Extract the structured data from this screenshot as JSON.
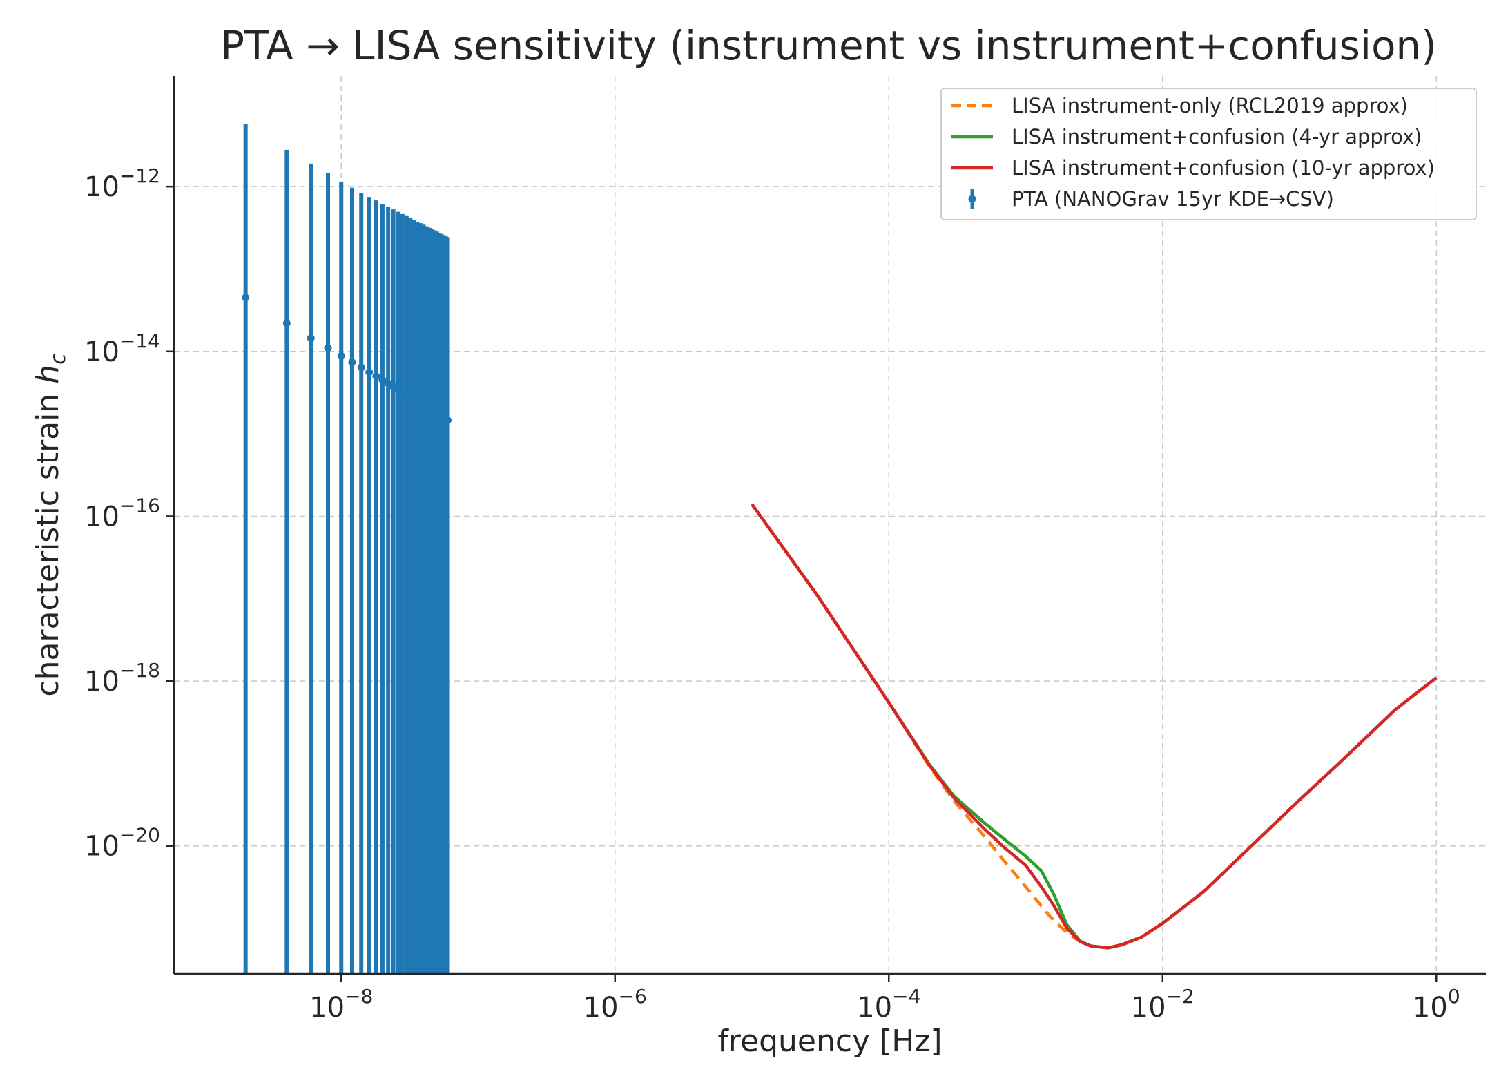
{
  "chart_data": {
    "type": "line",
    "title": "PTA → LISA sensitivity (instrument vs instrument+confusion)",
    "xlabel": "frequency [Hz]",
    "ylabel_text": "characteristic strain",
    "ylabel_symbol": "h",
    "ylabel_subscript": "c",
    "x_scale": "log",
    "y_scale": "log",
    "xlim": [
      6e-10,
      2.3
    ],
    "ylim": [
      2.8e-22,
      2.2e-11
    ],
    "x_ticks": [
      {
        "base": "10",
        "exp": "−8",
        "value": 1e-08
      },
      {
        "base": "10",
        "exp": "−6",
        "value": 1e-06
      },
      {
        "base": "10",
        "exp": "−4",
        "value": 0.0001
      },
      {
        "base": "10",
        "exp": "−2",
        "value": 0.01
      },
      {
        "base": "10",
        "exp": "0",
        "value": 1
      }
    ],
    "y_ticks": [
      {
        "base": "10",
        "exp": "−12",
        "value": 1e-12
      },
      {
        "base": "10",
        "exp": "−14",
        "value": 1e-14
      },
      {
        "base": "10",
        "exp": "−16",
        "value": 1e-16
      },
      {
        "base": "10",
        "exp": "−18",
        "value": 1e-18
      },
      {
        "base": "10",
        "exp": "−20",
        "value": 1e-20
      }
    ],
    "grid": true,
    "legend_position": "top-right",
    "colors": {
      "instrument": "#ff7f0e",
      "confusion_4yr": "#2ca02c",
      "confusion_10yr": "#d62728",
      "pta": "#1f77b4"
    },
    "legend": [
      {
        "label": "LISA instrument-only (RCL2019 approx)",
        "style": "dashed",
        "color": "#ff7f0e"
      },
      {
        "label": "LISA instrument+confusion (4-yr approx)",
        "style": "solid",
        "color": "#2ca02c"
      },
      {
        "label": "LISA instrument+confusion (10-yr approx)",
        "style": "solid",
        "color": "#d62728"
      },
      {
        "label": "PTA (NANOGrav 15yr KDE→CSV)",
        "style": "errorbar",
        "color": "#1f77b4"
      }
    ],
    "series": [
      {
        "name": "LISA instrument-only (RCL2019 approx)",
        "color": "#ff7f0e",
        "style": "dashed",
        "x": [
          1e-05,
          3e-05,
          0.0001,
          0.0002,
          0.0003,
          0.0005,
          0.0007,
          0.001,
          0.0015,
          0.002,
          0.0025,
          0.003,
          0.004,
          0.005,
          0.007,
          0.01,
          0.02,
          0.05,
          0.1,
          0.2,
          0.5,
          1.0
        ],
        "y": [
          1.4e-16,
          1.1e-17,
          5.5e-19,
          9e-20,
          3.5e-20,
          1.3e-20,
          6.5e-21,
          3.2e-21,
          1.4e-21,
          8.8e-22,
          6.9e-22,
          6.1e-22,
          5.8e-22,
          6.3e-22,
          7.8e-22,
          1.15e-21,
          2.8e-21,
          1.2e-20,
          3.6e-20,
          1.05e-19,
          4.5e-19,
          1.1e-18
        ]
      },
      {
        "name": "LISA instrument+confusion (4-yr approx)",
        "color": "#2ca02c",
        "style": "solid",
        "x": [
          1e-05,
          3e-05,
          0.0001,
          0.0002,
          0.0003,
          0.0005,
          0.0007,
          0.001,
          0.0013,
          0.0016,
          0.002,
          0.0025,
          0.003,
          0.004,
          0.005,
          0.007,
          0.01,
          0.02,
          0.05,
          0.1,
          0.2,
          0.5,
          1.0
        ],
        "y": [
          1.4e-16,
          1.1e-17,
          5.5e-19,
          9.5e-20,
          4e-20,
          1.9e-20,
          1.2e-20,
          7.5e-21,
          5e-21,
          2.6e-21,
          1.1e-21,
          7e-22,
          6.1e-22,
          5.8e-22,
          6.3e-22,
          7.8e-22,
          1.15e-21,
          2.8e-21,
          1.2e-20,
          3.6e-20,
          1.05e-19,
          4.5e-19,
          1.1e-18
        ]
      },
      {
        "name": "LISA instrument+confusion (10-yr approx)",
        "color": "#d62728",
        "style": "solid",
        "x": [
          1e-05,
          3e-05,
          0.0001,
          0.0002,
          0.0003,
          0.0005,
          0.0007,
          0.001,
          0.0013,
          0.0016,
          0.002,
          0.0025,
          0.003,
          0.004,
          0.005,
          0.007,
          0.01,
          0.02,
          0.05,
          0.1,
          0.2,
          0.5,
          1.0
        ],
        "y": [
          1.4e-16,
          1.1e-17,
          5.5e-19,
          9.3e-20,
          3.8e-20,
          1.6e-20,
          9.5e-21,
          5.8e-21,
          3.2e-21,
          1.9e-21,
          1e-21,
          6.9e-22,
          6.1e-22,
          5.8e-22,
          6.3e-22,
          7.8e-22,
          1.15e-21,
          2.8e-21,
          1.2e-20,
          3.6e-20,
          1.05e-19,
          4.5e-19,
          1.1e-18
        ]
      },
      {
        "name": "PTA (NANOGrav 15yr KDE→CSV)",
        "color": "#1f77b4",
        "style": "errorbar",
        "x": [
          2e-09,
          4e-09,
          6e-09,
          8e-09,
          1e-08,
          1.2e-08,
          1.4e-08,
          1.6e-08,
          1.8e-08,
          2e-08,
          2.2e-08,
          2.4e-08,
          2.6e-08,
          2.8e-08,
          3e-08,
          3.2e-08,
          3.4e-08,
          3.6e-08,
          3.8e-08,
          4e-08,
          4.2e-08,
          4.4e-08,
          4.6e-08,
          4.8e-08,
          5e-08,
          5.2e-08,
          5.4e-08,
          5.6e-08,
          5.8e-08,
          6e-08
        ],
        "y": [
          4.5e-14,
          2.2e-14,
          1.45e-14,
          1.1e-14,
          8.8e-15,
          7.4e-15,
          6.4e-15,
          5.6e-15,
          5e-15,
          4.5e-15,
          4.1e-15,
          3.75e-15,
          3.45e-15,
          3.2e-15,
          3e-15,
          2.8e-15,
          2.63e-15,
          2.48e-15,
          2.35e-15,
          2.23e-15,
          2.12e-15,
          2.02e-15,
          1.93e-15,
          1.85e-15,
          1.77e-15,
          1.7e-15,
          1.64e-15,
          1.58e-15,
          1.52e-15,
          1.46e-15
        ],
        "y_upper": [
          5.8e-12,
          2.8e-12,
          1.9e-12,
          1.45e-12,
          1.15e-12,
          9.7e-13,
          8.4e-13,
          7.5e-13,
          6.8e-13,
          6.2e-13,
          5.7e-13,
          5.3e-13,
          4.95e-13,
          4.65e-13,
          4.4e-13,
          4.15e-13,
          3.95e-13,
          3.75e-13,
          3.6e-13,
          3.45e-13,
          3.3e-13,
          3.17e-13,
          3.05e-13,
          2.95e-13,
          2.85e-13,
          2.75e-13,
          2.66e-13,
          2.58e-13,
          2.5e-13,
          2.43e-13
        ],
        "y_lower": [
          2.8e-22,
          2.8e-22,
          2.8e-22,
          2.8e-22,
          2.8e-22,
          2.8e-22,
          2.8e-22,
          2.8e-22,
          2.8e-22,
          2.8e-22,
          2.8e-22,
          2.8e-22,
          2.8e-22,
          2.8e-22,
          2.8e-22,
          2.8e-22,
          2.8e-22,
          2.8e-22,
          2.8e-22,
          2.8e-22,
          2.8e-22,
          2.8e-22,
          2.8e-22,
          2.8e-22,
          2.8e-22,
          2.8e-22,
          2.8e-22,
          2.8e-22,
          2.8e-22,
          2.8e-22
        ]
      }
    ]
  }
}
